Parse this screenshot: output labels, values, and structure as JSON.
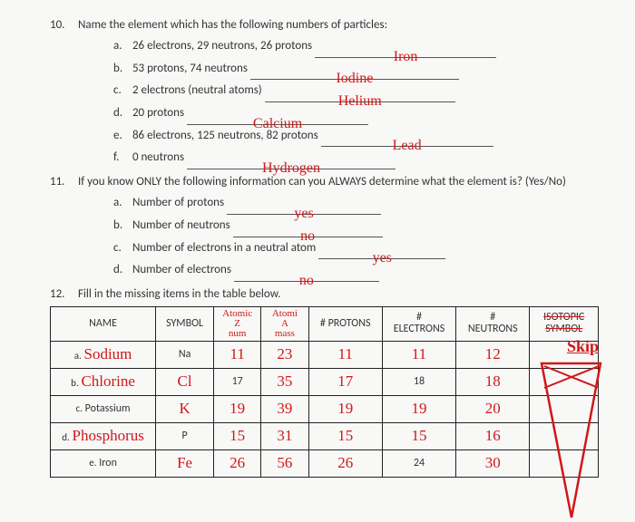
{
  "q10": {
    "prompt": "Name the element which has the following numbers of particles:",
    "items": [
      {
        "lt": "a.",
        "text": "26 electrons, 29 neutrons, 26 protons",
        "ans": "Iron",
        "bw": 200
      },
      {
        "lt": "b.",
        "text": "53 protons, 74 neutrons",
        "ans": "Iodine",
        "bw": 230
      },
      {
        "lt": "c.",
        "text": "2 electrons (neutral atoms)",
        "ans": "Helium",
        "bw": 210
      },
      {
        "lt": "d.",
        "text": "20 protons",
        "ans": "Calcium",
        "bw": 200
      },
      {
        "lt": "e.",
        "text": "86 electrons, 125 neutrons, 82 protons",
        "ans": "Lead",
        "bw": 190
      },
      {
        "lt": "f.",
        "text": "0 neutrons",
        "ans": "Hydrogen",
        "bw": 230
      }
    ]
  },
  "q11": {
    "prompt": "If you know ONLY the following information can you ALWAYS determine what the element is? (Yes/No)",
    "items": [
      {
        "lt": "a.",
        "text": "Number of protons",
        "ans": "yes",
        "bw": 170
      },
      {
        "lt": "b.",
        "text": "Number of neutrons",
        "ans": "no",
        "bw": 165
      },
      {
        "lt": "c.",
        "text": "Number of electrons in a neutral atom",
        "ans": "yes",
        "bw": 140
      },
      {
        "lt": "d.",
        "text": "Number of electrons",
        "ans": "no",
        "bw": 160
      }
    ]
  },
  "q12": {
    "prompt": "Fill in the missing items in the table below.",
    "skip": "Skip",
    "headers": {
      "name": "NAME",
      "symbol": "SYMBOL",
      "atomic_z1": "Atomic",
      "atomic_z2": "Z",
      "atomic_z3": "num",
      "atomic_a1": "Atomi",
      "atomic_a2": "A",
      "atomic_a3": "mass",
      "protons": "# PROTONS",
      "elec1": "#",
      "elec2": "ELECTRONS",
      "neut1": "#",
      "neut2": "NEUTRONS",
      "iso1": "ISOTOPIC",
      "iso2": "SYMBOL"
    },
    "rows": [
      {
        "lt": "a.",
        "name": "Sodium",
        "name_hand": true,
        "symbol": "Na",
        "sym_hand": false,
        "z": "11",
        "z_hand": true,
        "a": "23",
        "a_hand": true,
        "p": "11",
        "p_hand": true,
        "e": "11",
        "e_hand": true,
        "n": "12",
        "n_hand": true
      },
      {
        "lt": "b.",
        "name": "Chlorine",
        "name_hand": true,
        "symbol": "Cl",
        "sym_hand": true,
        "z": "17",
        "z_hand": false,
        "a": "35",
        "a_hand": true,
        "p": "17",
        "p_hand": true,
        "e": "18",
        "e_hand": false,
        "n": "18",
        "n_hand": true
      },
      {
        "lt": "c.",
        "name": "Potassium",
        "name_hand": false,
        "symbol": "K",
        "sym_hand": true,
        "z": "19",
        "z_hand": true,
        "a": "39",
        "a_hand": true,
        "p": "19",
        "p_hand": true,
        "e": "19",
        "e_hand": true,
        "n": "20",
        "n_hand": true
      },
      {
        "lt": "d.",
        "name": "Phosphorus",
        "name_hand": true,
        "symbol": "P",
        "sym_hand": false,
        "z": "15",
        "z_hand": true,
        "a": "31",
        "a_hand": true,
        "p": "15",
        "p_hand": true,
        "e": "15",
        "e_hand": true,
        "n": "16",
        "n_hand": true
      },
      {
        "lt": "e.",
        "name": "Iron",
        "name_hand": false,
        "symbol": "Fe",
        "sym_hand": true,
        "z": "26",
        "z_hand": true,
        "a": "56",
        "a_hand": true,
        "p": "26",
        "p_hand": true,
        "e": "24",
        "e_hand": false,
        "n": "30",
        "n_hand": true
      }
    ]
  }
}
